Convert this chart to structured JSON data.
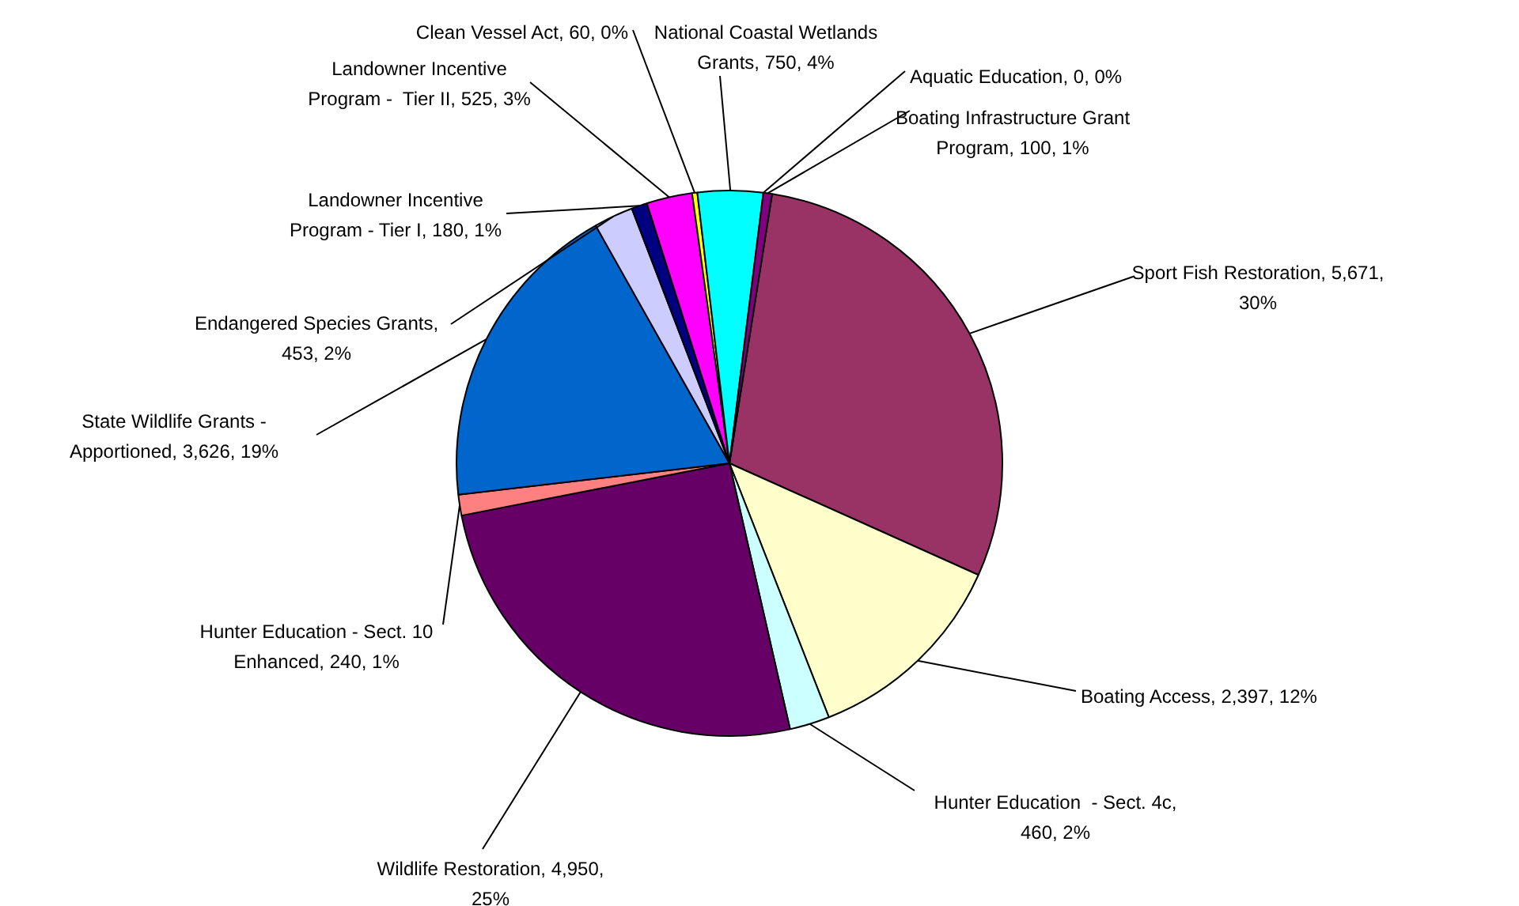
{
  "chart_data": {
    "type": "pie",
    "categories": [
      "Sport Fish Restoration, 5,671, 30%",
      "Boating Access, 2,397, 12%",
      "Hunter Education  - Sect. 4c, 460, 2%",
      "Wildlife Restoration, 4,950, 25%",
      "Hunter Education - Sect. 10 Enhanced, 240, 1%",
      "State Wildlife Grants - Apportioned, 3,626, 19%",
      "Endangered Species Grants, 453, 2%",
      "Landowner Incentive Program - Tier I, 180, 1%",
      "Landowner Incentive Program -  Tier II, 525, 3%",
      "Clean Vessel Act, 60, 0%",
      "National Coastal Wetlands Grants, 750, 4%",
      "Aquatic Education, 0, 0%",
      "Boating Infrastructure Grant Program, 100, 1%"
    ],
    "values": [
      5671,
      2397,
      460,
      4950,
      240,
      3626,
      453,
      180,
      525,
      60,
      750,
      0,
      100
    ],
    "colors": [
      "#993366",
      "#ffffcc",
      "#ccffff",
      "#660066",
      "#ff8080",
      "#0066cc",
      "#ccccff",
      "#000080",
      "#ff00ff",
      "#ffff00",
      "#00ffff",
      "#800080",
      "#800080"
    ],
    "legend": false
  }
}
